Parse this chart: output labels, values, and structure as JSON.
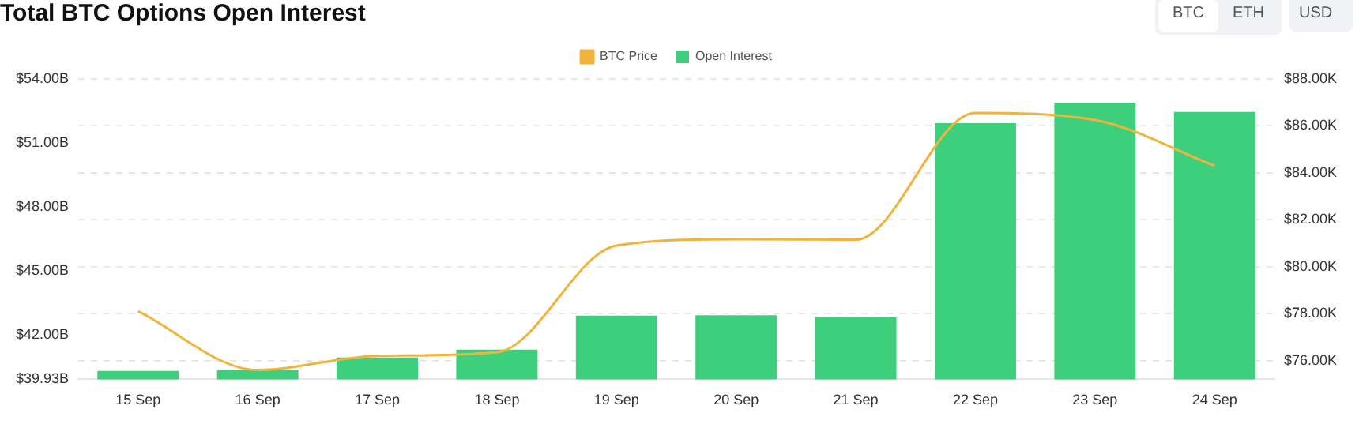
{
  "chart_data": {
    "type": "bar",
    "title": "Total BTC Options Open Interest",
    "categories": [
      "15 Sep",
      "16 Sep",
      "17 Sep",
      "18 Sep",
      "19 Sep",
      "20 Sep",
      "21 Sep",
      "22 Sep",
      "23 Sep",
      "24 Sep"
    ],
    "series": [
      {
        "name": "BTC Price",
        "type": "line",
        "axis": "y2",
        "color": "#f0b43c",
        "values": [
          78.1,
          75.6,
          76.2,
          76.35,
          80.9,
          81.17,
          81.15,
          86.55,
          86.25,
          84.3
        ]
      },
      {
        "name": "Open Interest",
        "color": "#3ecf7d",
        "values": [
          40.32,
          40.37,
          40.95,
          41.32,
          42.91,
          42.93,
          42.83,
          51.93,
          52.88,
          52.46
        ]
      }
    ],
    "ylim": [
      39.93,
      54
    ],
    "yticks": [
      {
        "value": 39.93,
        "label": "$39.93B"
      },
      {
        "value": 42,
        "label": "$42.00B"
      },
      {
        "value": 45,
        "label": "$45.00B"
      },
      {
        "value": 48,
        "label": "$48.00B"
      },
      {
        "value": 51,
        "label": "$51.00B"
      },
      {
        "value": 54,
        "label": "$54.00B"
      }
    ],
    "y2lim": [
      75.2,
      88
    ],
    "y2ticks": [
      {
        "value": 76,
        "label": "$76.00K"
      },
      {
        "value": 78,
        "label": "$78.00K"
      },
      {
        "value": 80,
        "label": "$80.00K"
      },
      {
        "value": 82,
        "label": "$82.00K"
      },
      {
        "value": 84,
        "label": "$84.00K"
      },
      {
        "value": 86,
        "label": "$86.00K"
      },
      {
        "value": 88,
        "label": "$88.00K"
      }
    ],
    "annotations": [
      "BTC",
      "ETH",
      "USD"
    ],
    "grid": "y",
    "legend": "top",
    "marker": "none",
    "line_style": "solid"
  }
}
